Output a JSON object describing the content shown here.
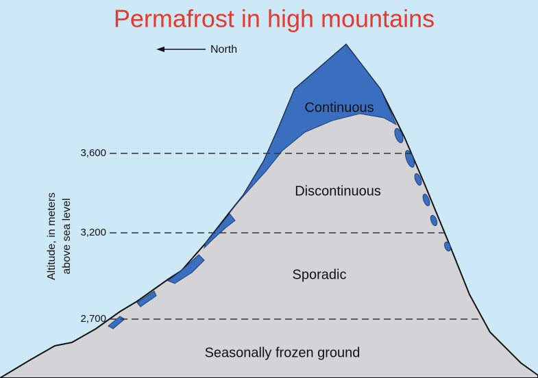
{
  "title": "Permafrost in high mountains",
  "direction": "North",
  "axis_label": [
    "Altitude, in meters",
    "above sea level"
  ],
  "altitudes": [
    "3,600",
    "3,200",
    "2,700"
  ],
  "zones": [
    "Continuous",
    "Discontinuous",
    "Sporadic",
    "Seasonally frozen ground"
  ]
}
